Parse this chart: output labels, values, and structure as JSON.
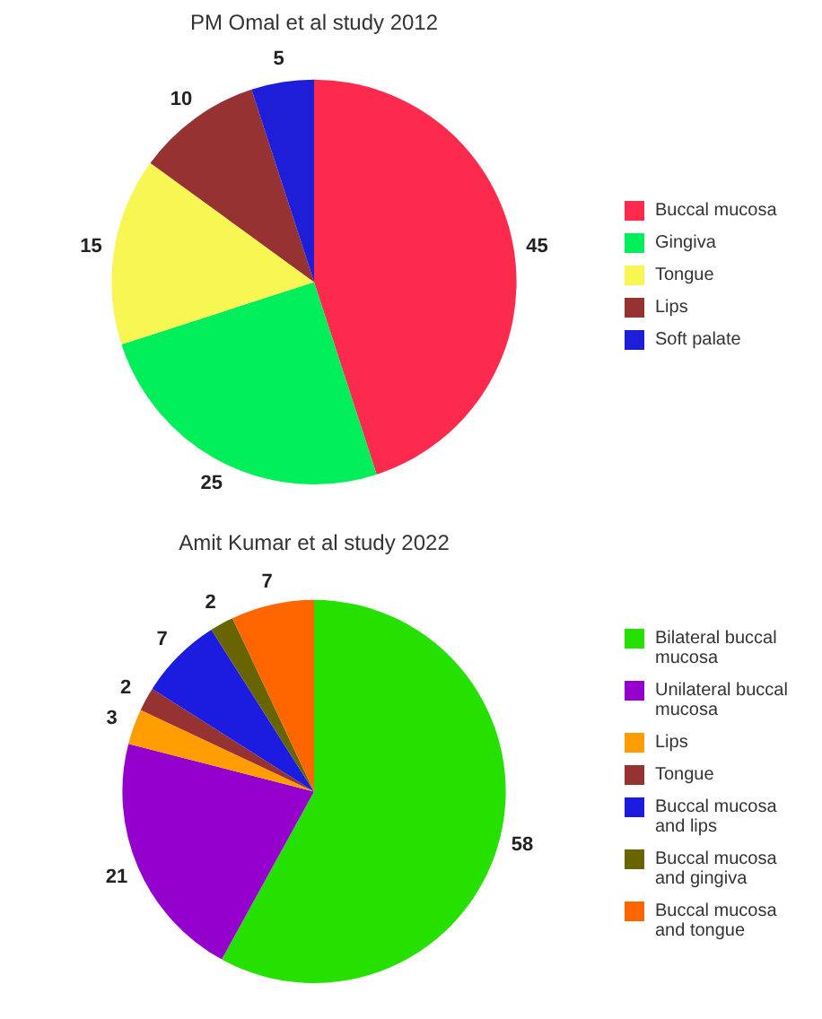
{
  "chart_data": [
    {
      "type": "pie",
      "title": "PM Omal et al study 2012",
      "categories": [
        "Buccal mucosa",
        "Gingiva",
        "Tongue",
        "Lips",
        "Soft palate"
      ],
      "values": [
        45,
        25,
        15,
        10,
        5
      ],
      "colors": [
        "#fc2a4c",
        "#00ee5a",
        "#f8f652",
        "#963232",
        "#1e1ed8"
      ],
      "data_labels": true,
      "legend": "right"
    },
    {
      "type": "pie",
      "title": "Amit Kumar et al study 2022",
      "categories": [
        "Bilateral buccal mucosa",
        "Unilateral buccal mucosa",
        "Lips",
        "Tongue",
        "Buccal mucosa and lips",
        "Buccal mucosa and gingiva",
        "Buccal mucosa and tongue"
      ],
      "values": [
        58,
        21,
        3,
        2,
        7,
        2,
        7
      ],
      "colors": [
        "#26e000",
        "#9400cc",
        "#ff9c00",
        "#963232",
        "#1c1ce0",
        "#686400",
        "#ff6600"
      ],
      "data_labels": true,
      "legend": "right"
    }
  ]
}
